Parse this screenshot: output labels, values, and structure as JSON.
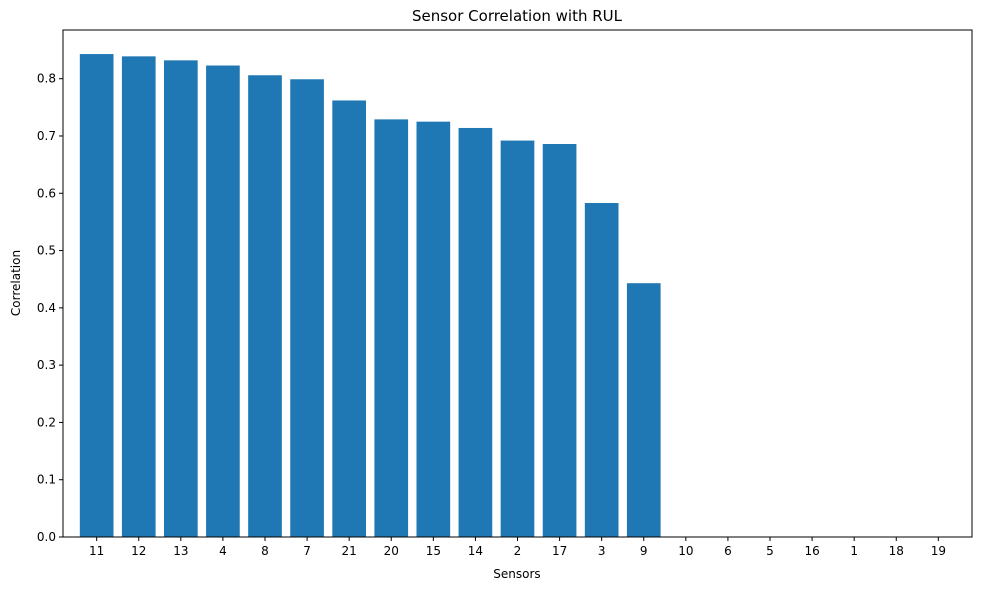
{
  "chart_data": {
    "type": "bar",
    "title": "Sensor Correlation with RUL",
    "xlabel": "Sensors",
    "ylabel": "Correlation",
    "categories": [
      "11",
      "12",
      "13",
      "4",
      "8",
      "7",
      "21",
      "20",
      "15",
      "14",
      "2",
      "17",
      "3",
      "9",
      "10",
      "6",
      "5",
      "16",
      "1",
      "18",
      "19"
    ],
    "values": [
      0.843,
      0.839,
      0.832,
      0.823,
      0.806,
      0.799,
      0.762,
      0.729,
      0.725,
      0.714,
      0.692,
      0.686,
      0.583,
      0.443,
      0,
      0,
      0,
      0,
      0,
      0,
      0
    ],
    "ylim": [
      0,
      0.885
    ],
    "yticks": [
      0.0,
      0.1,
      0.2,
      0.3,
      0.4,
      0.5,
      0.6,
      0.7,
      0.8
    ],
    "ytick_labels": [
      "0.0",
      "0.1",
      "0.2",
      "0.3",
      "0.4",
      "0.5",
      "0.6",
      "0.7",
      "0.8"
    ],
    "grid": false,
    "bar_color": "#1f77b4"
  }
}
